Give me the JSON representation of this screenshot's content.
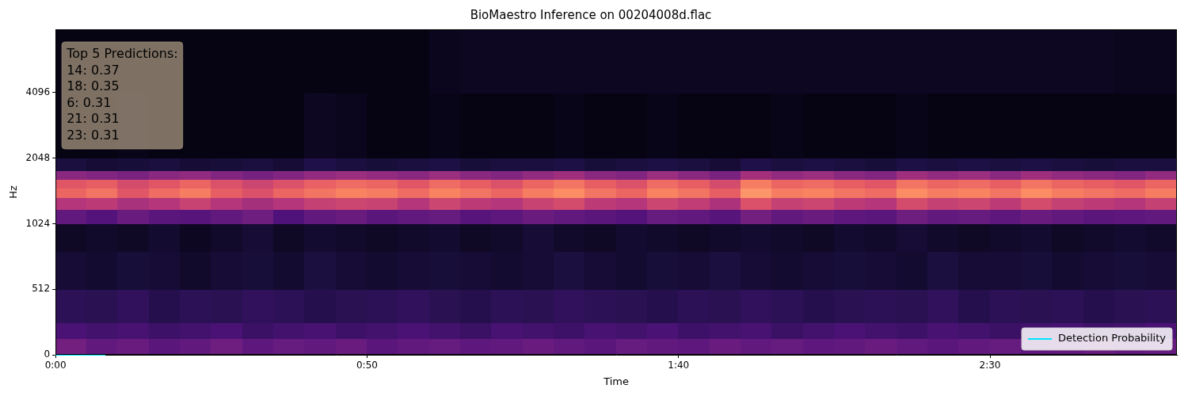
{
  "chart_data": {
    "type": "heatmap",
    "title": "BioMaestro Inference on 00204008d.flac",
    "x_label": "Time",
    "y_label": "Hz",
    "xlim": [
      0,
      180
    ],
    "xticks": [
      {
        "value": 0,
        "label": "0:00"
      },
      {
        "value": 50,
        "label": "0:50"
      },
      {
        "value": 100,
        "label": "1:40"
      },
      {
        "value": 150,
        "label": "2:30"
      }
    ],
    "ylim": [
      0,
      8000
    ],
    "yticks": [
      0,
      512,
      1024,
      2048,
      4096
    ],
    "log": "y",
    "grid": false,
    "legend": "lower right",
    "annotations": [
      "Top 5 Predictions:",
      "14: 0.37",
      "18: 0.35",
      "6: 0.31",
      "21: 0.31",
      "23: 0.31"
    ],
    "heatmap": {
      "x_edges": [
        0,
        5,
        10,
        15,
        20,
        25,
        30,
        35,
        40,
        45,
        50,
        55,
        60,
        65,
        70,
        75,
        80,
        85,
        90,
        95,
        100,
        105,
        110,
        115,
        120,
        125,
        130,
        135,
        140,
        145,
        150,
        155,
        160,
        165,
        170,
        175,
        180
      ],
      "y_edges": [
        0,
        128,
        256,
        512,
        768,
        1024,
        1200,
        1350,
        1500,
        1650,
        1800,
        2048,
        4096,
        8000
      ],
      "clim": [
        0,
        1
      ],
      "cells": [
        [
          0.34,
          0.3,
          0.32,
          0.28,
          0.3,
          0.33,
          0.29,
          0.31,
          0.3,
          0.32,
          0.28,
          0.3,
          0.31,
          0.29,
          0.3,
          0.32,
          0.3,
          0.28,
          0.31,
          0.3,
          0.29,
          0.32,
          0.3,
          0.31,
          0.29,
          0.3,
          0.32,
          0.3,
          0.28,
          0.3,
          0.31,
          0.29,
          0.3,
          0.32,
          0.3,
          0.31
        ],
        [
          0.24,
          0.22,
          0.23,
          0.21,
          0.22,
          0.24,
          0.2,
          0.22,
          0.23,
          0.21,
          0.22,
          0.24,
          0.22,
          0.2,
          0.23,
          0.22,
          0.21,
          0.23,
          0.22,
          0.24,
          0.21,
          0.22,
          0.23,
          0.2,
          0.22,
          0.24,
          0.22,
          0.21,
          0.23,
          0.22,
          0.2,
          0.22,
          0.23,
          0.21,
          0.22,
          0.24
        ],
        [
          0.17,
          0.16,
          0.18,
          0.15,
          0.17,
          0.16,
          0.18,
          0.17,
          0.15,
          0.16,
          0.17,
          0.18,
          0.16,
          0.15,
          0.17,
          0.16,
          0.18,
          0.17,
          0.16,
          0.15,
          0.17,
          0.16,
          0.18,
          0.17,
          0.15,
          0.16,
          0.17,
          0.16,
          0.18,
          0.15,
          0.17,
          0.16,
          0.17,
          0.15,
          0.16,
          0.17
        ],
        [
          0.1,
          0.09,
          0.11,
          0.1,
          0.08,
          0.1,
          0.11,
          0.09,
          0.12,
          0.1,
          0.09,
          0.1,
          0.11,
          0.1,
          0.09,
          0.1,
          0.12,
          0.1,
          0.09,
          0.11,
          0.1,
          0.12,
          0.1,
          0.09,
          0.1,
          0.11,
          0.1,
          0.09,
          0.12,
          0.1,
          0.1,
          0.11,
          0.09,
          0.1,
          0.11,
          0.1
        ],
        [
          0.07,
          0.08,
          0.07,
          0.09,
          0.06,
          0.08,
          0.1,
          0.07,
          0.09,
          0.08,
          0.07,
          0.08,
          0.09,
          0.07,
          0.08,
          0.1,
          0.08,
          0.07,
          0.09,
          0.08,
          0.07,
          0.08,
          0.09,
          0.08,
          0.07,
          0.09,
          0.08,
          0.1,
          0.08,
          0.07,
          0.08,
          0.09,
          0.07,
          0.08,
          0.09,
          0.08
        ],
        [
          0.3,
          0.26,
          0.32,
          0.28,
          0.27,
          0.3,
          0.33,
          0.25,
          0.3,
          0.32,
          0.28,
          0.3,
          0.31,
          0.27,
          0.29,
          0.32,
          0.3,
          0.28,
          0.26,
          0.31,
          0.3,
          0.27,
          0.34,
          0.3,
          0.32,
          0.29,
          0.28,
          0.33,
          0.3,
          0.31,
          0.29,
          0.32,
          0.3,
          0.28,
          0.29,
          0.3
        ],
        [
          0.5,
          0.52,
          0.47,
          0.5,
          0.55,
          0.5,
          0.46,
          0.5,
          0.54,
          0.56,
          0.55,
          0.5,
          0.56,
          0.52,
          0.5,
          0.55,
          0.58,
          0.52,
          0.5,
          0.56,
          0.53,
          0.48,
          0.6,
          0.54,
          0.56,
          0.52,
          0.5,
          0.58,
          0.54,
          0.56,
          0.52,
          0.58,
          0.54,
          0.52,
          0.5,
          0.54
        ],
        [
          0.66,
          0.7,
          0.62,
          0.68,
          0.72,
          0.64,
          0.6,
          0.66,
          0.7,
          0.74,
          0.72,
          0.68,
          0.74,
          0.7,
          0.66,
          0.72,
          0.76,
          0.7,
          0.66,
          0.74,
          0.7,
          0.64,
          0.78,
          0.72,
          0.74,
          0.7,
          0.68,
          0.76,
          0.72,
          0.74,
          0.7,
          0.76,
          0.72,
          0.7,
          0.68,
          0.72
        ],
        [
          0.62,
          0.64,
          0.58,
          0.62,
          0.66,
          0.6,
          0.56,
          0.6,
          0.65,
          0.68,
          0.66,
          0.62,
          0.68,
          0.64,
          0.6,
          0.66,
          0.7,
          0.64,
          0.6,
          0.68,
          0.64,
          0.58,
          0.72,
          0.66,
          0.68,
          0.64,
          0.62,
          0.7,
          0.66,
          0.68,
          0.64,
          0.7,
          0.66,
          0.64,
          0.62,
          0.66
        ],
        [
          0.4,
          0.38,
          0.36,
          0.4,
          0.42,
          0.38,
          0.35,
          0.38,
          0.42,
          0.44,
          0.42,
          0.4,
          0.44,
          0.4,
          0.38,
          0.42,
          0.45,
          0.4,
          0.38,
          0.44,
          0.4,
          0.36,
          0.46,
          0.42,
          0.44,
          0.4,
          0.38,
          0.45,
          0.42,
          0.44,
          0.4,
          0.45,
          0.42,
          0.4,
          0.38,
          0.42
        ],
        [
          0.12,
          0.1,
          0.11,
          0.12,
          0.1,
          0.11,
          0.12,
          0.1,
          0.14,
          0.12,
          0.11,
          0.12,
          0.13,
          0.11,
          0.12,
          0.12,
          0.13,
          0.11,
          0.12,
          0.13,
          0.12,
          0.1,
          0.14,
          0.12,
          0.13,
          0.12,
          0.11,
          0.13,
          0.12,
          0.13,
          0.12,
          0.13,
          0.12,
          0.11,
          0.12,
          0.12
        ],
        [
          0.03,
          0.03,
          0.04,
          0.03,
          0.03,
          0.03,
          0.03,
          0.03,
          0.06,
          0.05,
          0.03,
          0.03,
          0.04,
          0.03,
          0.03,
          0.03,
          0.04,
          0.03,
          0.03,
          0.04,
          0.03,
          0.03,
          0.03,
          0.04,
          0.03,
          0.03,
          0.03,
          0.04,
          0.03,
          0.03,
          0.03,
          0.03,
          0.03,
          0.03,
          0.03,
          0.03
        ],
        [
          0.03,
          0.03,
          0.03,
          0.03,
          0.03,
          0.03,
          0.03,
          0.03,
          0.03,
          0.03,
          0.03,
          0.03,
          0.05,
          0.06,
          0.06,
          0.06,
          0.06,
          0.06,
          0.06,
          0.06,
          0.06,
          0.06,
          0.06,
          0.06,
          0.06,
          0.06,
          0.06,
          0.06,
          0.06,
          0.06,
          0.06,
          0.06,
          0.06,
          0.06,
          0.05,
          0.05
        ]
      ]
    },
    "series": [
      {
        "name": "Detection Probability",
        "type": "line",
        "color": "#00e5ff",
        "line_style": "solid",
        "x": [
          0,
          2,
          4,
          6,
          8
        ],
        "values": [
          0,
          0,
          0,
          0,
          0
        ]
      }
    ]
  }
}
